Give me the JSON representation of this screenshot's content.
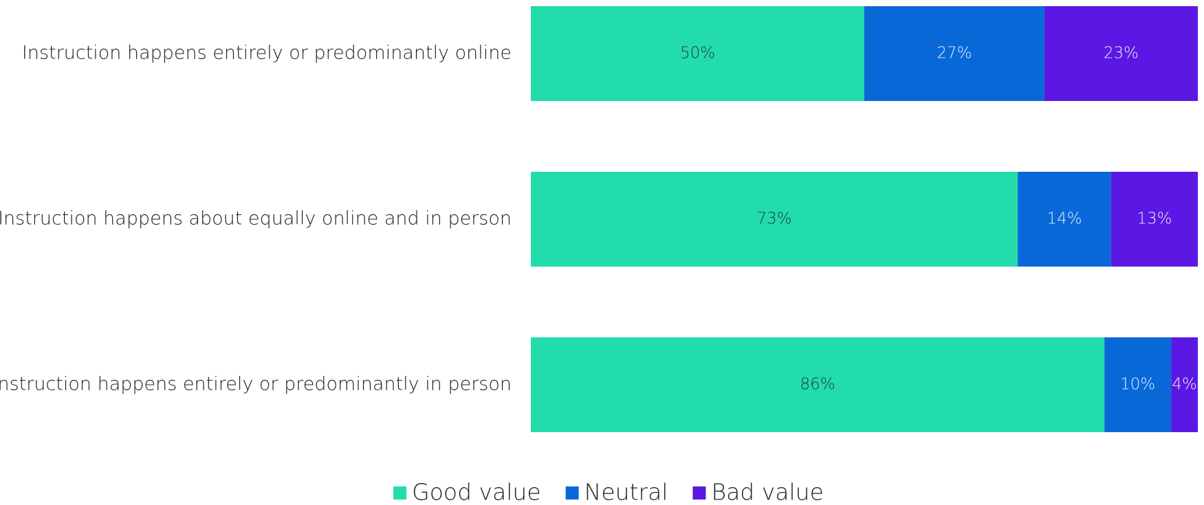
{
  "chart_data": {
    "type": "stacked-bar-horizontal",
    "categories": [
      "Instruction happens entirely or predominantly online",
      "Instruction happens about equally online and in person",
      "Instruction happens entirely or predominantly in person"
    ],
    "xlim": [
      0,
      100
    ],
    "series": [
      {
        "name": "Good value",
        "color": "#22dcab",
        "values": [
          50,
          73,
          86
        ],
        "value_labels": [
          "50%",
          "73%",
          "86%"
        ]
      },
      {
        "name": "Neutral",
        "color": "#0868d8",
        "values": [
          27,
          14,
          10
        ],
        "value_labels": [
          "27%",
          "14%",
          "10%"
        ]
      },
      {
        "name": "Bad value",
        "color": "#5b17e3",
        "values": [
          23,
          13,
          4
        ],
        "value_labels": [
          "23%",
          "13%",
          "4%"
        ]
      }
    ],
    "legend": "bottom"
  }
}
